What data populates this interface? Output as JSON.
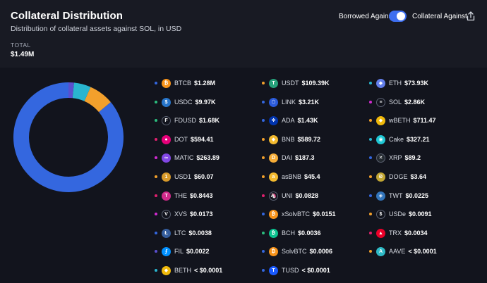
{
  "header": {
    "title": "Collateral Distribution",
    "subtitle": "Distribution of collateral assets against SOL, in USD",
    "total_label": "TOTAL",
    "total_value": "$1.49M",
    "toggle_left": "Borrowed Against",
    "toggle_right": "Collateral Against",
    "toggle_on": true,
    "share_icon": "share-icon"
  },
  "colors": {
    "accent": "#3d6ef0",
    "background": "#12141d",
    "header_bg": "#181a23"
  },
  "donut": {
    "segments": [
      {
        "symbol": "BTCB",
        "value": 1280000,
        "color": "#3467df"
      },
      {
        "symbol": "USDT",
        "value": 109390,
        "color": "#f2a02c"
      },
      {
        "symbol": "ETH",
        "value": 73930,
        "color": "#29b5cf"
      },
      {
        "symbol": "other",
        "value": 24000,
        "color": "#5a4fcf"
      }
    ]
  },
  "assets": [
    {
      "symbol": "BTCB",
      "value": "$1.28M",
      "dot": "#3467df",
      "icon_color": "#f7931a",
      "glyph": "₿",
      "icon": "bitcoin-icon"
    },
    {
      "symbol": "USDC",
      "value": "$9.97K",
      "dot": "#2bbd7e",
      "icon_color": "#2775ca",
      "glyph": "$",
      "icon": "usdc-icon"
    },
    {
      "symbol": "FDUSD",
      "value": "$1.68K",
      "dot": "#2bbd7e",
      "icon_color": "#12141d",
      "glyph": "F",
      "icon": "fdusd-icon"
    },
    {
      "symbol": "DOT",
      "value": "$594.41",
      "dot": "#e0206f",
      "icon_color": "#e6007a",
      "glyph": "●",
      "icon": "polkadot-icon"
    },
    {
      "symbol": "MATIC",
      "value": "$263.89",
      "dot": "#d12ad1",
      "icon_color": "#8247e5",
      "glyph": "∞",
      "icon": "polygon-icon"
    },
    {
      "symbol": "USD1",
      "value": "$60.07",
      "dot": "#f2a02c",
      "icon_color": "#d89a2a",
      "glyph": "1",
      "icon": "usd1-icon"
    },
    {
      "symbol": "THE",
      "value": "$0.8443",
      "dot": "#e0206f",
      "icon_color": "#d12a8a",
      "glyph": "T",
      "icon": "thena-icon"
    },
    {
      "symbol": "XVS",
      "value": "$0.0173",
      "dot": "#d12ad1",
      "icon_color": "#12141d",
      "glyph": "V",
      "icon": "venus-icon"
    },
    {
      "symbol": "LTC",
      "value": "$0.0038",
      "dot": "#3467df",
      "icon_color": "#345d9d",
      "glyph": "Ł",
      "icon": "litecoin-icon"
    },
    {
      "symbol": "FIL",
      "value": "$0.0022",
      "dot": "#5a4fcf",
      "icon_color": "#0090ff",
      "glyph": "⨍",
      "icon": "filecoin-icon"
    },
    {
      "symbol": "BETH",
      "value": "< $0.0001",
      "dot": "#29b5cf",
      "icon_color": "#f0b90b",
      "glyph": "◆",
      "icon": "beth-icon"
    },
    {
      "symbol": "USDT",
      "value": "$109.39K",
      "dot": "#f2a02c",
      "icon_color": "#26a17b",
      "glyph": "T",
      "icon": "tether-icon"
    },
    {
      "symbol": "LINK",
      "value": "$3.21K",
      "dot": "#3467df",
      "icon_color": "#2a5ada",
      "glyph": "⬡",
      "icon": "chainlink-icon"
    },
    {
      "symbol": "ADA",
      "value": "$1.43K",
      "dot": "#3467df",
      "icon_color": "#0033ad",
      "glyph": "✻",
      "icon": "cardano-icon"
    },
    {
      "symbol": "BNB",
      "value": "$589.72",
      "dot": "#f2a02c",
      "icon_color": "#f3ba2f",
      "glyph": "◆",
      "icon": "bnb-icon"
    },
    {
      "symbol": "DAI",
      "value": "$187.3",
      "dot": "#f2a02c",
      "icon_color": "#f5ac37",
      "glyph": "D",
      "icon": "dai-icon"
    },
    {
      "symbol": "asBNB",
      "value": "$45.4",
      "dot": "#f2a02c",
      "icon_color": "#f3ba2f",
      "glyph": "a",
      "icon": "asbnb-icon"
    },
    {
      "symbol": "UNI",
      "value": "$0.0828",
      "dot": "#e0206f",
      "icon_color": "#12141d",
      "glyph": "🦄",
      "icon": "uniswap-icon"
    },
    {
      "symbol": "xSolvBTC",
      "value": "$0.0151",
      "dot": "#3467df",
      "icon_color": "#f7931a",
      "glyph": "₿",
      "icon": "xsolvbtc-icon"
    },
    {
      "symbol": "BCH",
      "value": "$0.0036",
      "dot": "#2bbd7e",
      "icon_color": "#0ac18e",
      "glyph": "₿",
      "icon": "bitcoin-cash-icon"
    },
    {
      "symbol": "SolvBTC",
      "value": "$0.0006",
      "dot": "#3467df",
      "icon_color": "#f7931a",
      "glyph": "₿",
      "icon": "solvbtc-icon"
    },
    {
      "symbol": "TUSD",
      "value": "< $0.0001",
      "dot": "#3467df",
      "icon_color": "#1a5aff",
      "glyph": "T",
      "icon": "tusd-icon"
    },
    {
      "symbol": "ETH",
      "value": "$73.93K",
      "dot": "#29b5cf",
      "icon_color": "#627eea",
      "glyph": "◆",
      "icon": "ethereum-icon"
    },
    {
      "symbol": "SOL",
      "value": "$2.86K",
      "dot": "#d12ad1",
      "icon_color": "#12141d",
      "glyph": "≡",
      "icon": "solana-icon"
    },
    {
      "symbol": "wBETH",
      "value": "$711.47",
      "dot": "#f2a02c",
      "icon_color": "#f0b90b",
      "glyph": "◆",
      "icon": "wbeth-icon"
    },
    {
      "symbol": "Cake",
      "value": "$327.21",
      "dot": "#29b5cf",
      "icon_color": "#1fc7d4",
      "glyph": "◉",
      "icon": "pancakeswap-icon"
    },
    {
      "symbol": "XRP",
      "value": "$89.2",
      "dot": "#3467df",
      "icon_color": "#23292f",
      "glyph": "✕",
      "icon": "xrp-icon"
    },
    {
      "symbol": "DOGE",
      "value": "$3.64",
      "dot": "#f2a02c",
      "icon_color": "#c2a633",
      "glyph": "Ð",
      "icon": "dogecoin-icon"
    },
    {
      "symbol": "TWT",
      "value": "$0.0225",
      "dot": "#3467df",
      "icon_color": "#3375bb",
      "glyph": "◈",
      "icon": "trustwallet-icon"
    },
    {
      "symbol": "USDe",
      "value": "$0.0091",
      "dot": "#f2a02c",
      "icon_color": "#12141d",
      "glyph": "$",
      "icon": "usde-icon"
    },
    {
      "symbol": "TRX",
      "value": "$0.0034",
      "dot": "#e0206f",
      "icon_color": "#eb0029",
      "glyph": "▲",
      "icon": "tron-icon"
    },
    {
      "symbol": "AAVE",
      "value": "< $0.0001",
      "dot": "#f2a02c",
      "icon_color": "#2ebac6",
      "glyph": "A",
      "icon": "aave-icon"
    }
  ]
}
